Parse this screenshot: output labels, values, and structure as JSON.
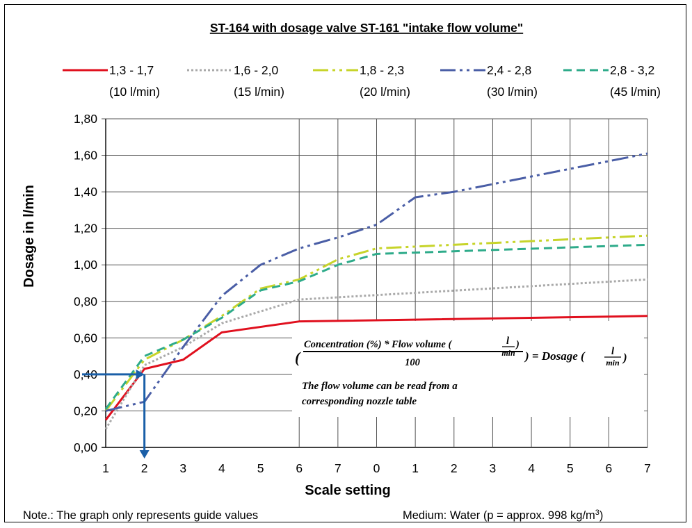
{
  "chart_data": {
    "type": "line",
    "title": "ST-164 with dosage valve ST-161 \"intake flow volume\"",
    "xlabel": "Scale setting",
    "ylabel": "Dosage in l/min",
    "x_tick_labels": [
      "1",
      "2",
      "3",
      "4",
      "5",
      "6",
      "7",
      "0",
      "1",
      "2",
      "3",
      "4",
      "5",
      "6",
      "7"
    ],
    "y_tick_labels": [
      "0,00",
      "0,20",
      "0,40",
      "0,60",
      "0,80",
      "1,00",
      "1,20",
      "1,40",
      "1,60",
      "1,80"
    ],
    "ylim": [
      0,
      1.8
    ],
    "x_positions": [
      1,
      2,
      3,
      4,
      5,
      6,
      7,
      8,
      9,
      10,
      11,
      12,
      13,
      14,
      15
    ],
    "grid": "horizontal on all; vertical only from second scale range",
    "legend_position": "top",
    "series": [
      {
        "name": "1,3 - 1,7",
        "subtitle": "(10 l/min)",
        "color": "#e0101e",
        "style": "solid",
        "x": [
          1,
          2,
          3,
          4,
          6,
          15
        ],
        "y": [
          0.15,
          0.43,
          0.48,
          0.63,
          0.69,
          0.72
        ]
      },
      {
        "name": "1,6 - 2,0",
        "subtitle": "(15 l/min)",
        "color": "#a9a9a9",
        "style": "dotted",
        "x": [
          1,
          2,
          3,
          4,
          6,
          15
        ],
        "y": [
          0.1,
          0.45,
          0.55,
          0.68,
          0.81,
          0.92
        ]
      },
      {
        "name": "1,8 - 2,3",
        "subtitle": "(20 l/min)",
        "color": "#c7d42a",
        "style": "dashdotdot",
        "x": [
          1,
          2,
          3,
          4,
          5,
          6,
          7,
          8,
          15
        ],
        "y": [
          0.2,
          0.48,
          0.59,
          0.72,
          0.87,
          0.92,
          1.03,
          1.09,
          1.16
        ]
      },
      {
        "name": "2,4 - 2,8",
        "subtitle": "(30 l/min)",
        "color": "#4a5ea6",
        "style": "dashdotdot",
        "x": [
          1,
          2,
          3,
          4,
          5,
          6,
          7,
          8,
          9,
          10,
          15
        ],
        "y": [
          0.2,
          0.25,
          0.55,
          0.83,
          1.0,
          1.09,
          1.15,
          1.22,
          1.37,
          1.4,
          1.61
        ]
      },
      {
        "name": "2,8 - 3,2",
        "subtitle": "(45 l/min)",
        "color": "#2eab8a",
        "style": "dashed",
        "x": [
          1,
          2,
          3,
          4,
          5,
          6,
          7,
          8,
          15
        ],
        "y": [
          0.21,
          0.5,
          0.59,
          0.71,
          0.86,
          0.91,
          1.0,
          1.06,
          1.11
        ]
      }
    ],
    "annotation": {
      "marker_value": 0.4,
      "marker_x": 2,
      "formula_numerator": "Concentration (%) * Flow volume (",
      "formula_unit_num": "l",
      "formula_unit_den": "min",
      "formula_denominator": "100",
      "formula_result": ") = Dosage (",
      "formula_result_end": ")",
      "paren_open": "(",
      "flow_note_line1": "The flow volume can be read from a",
      "flow_note_line2": "corresponding nozzle table"
    }
  },
  "footer": {
    "note": "Note.: The graph only represents guide values",
    "medium": "Medium: Water (p = approx. 998 kg/m",
    "medium_sup": "3",
    "medium_end": ")"
  }
}
